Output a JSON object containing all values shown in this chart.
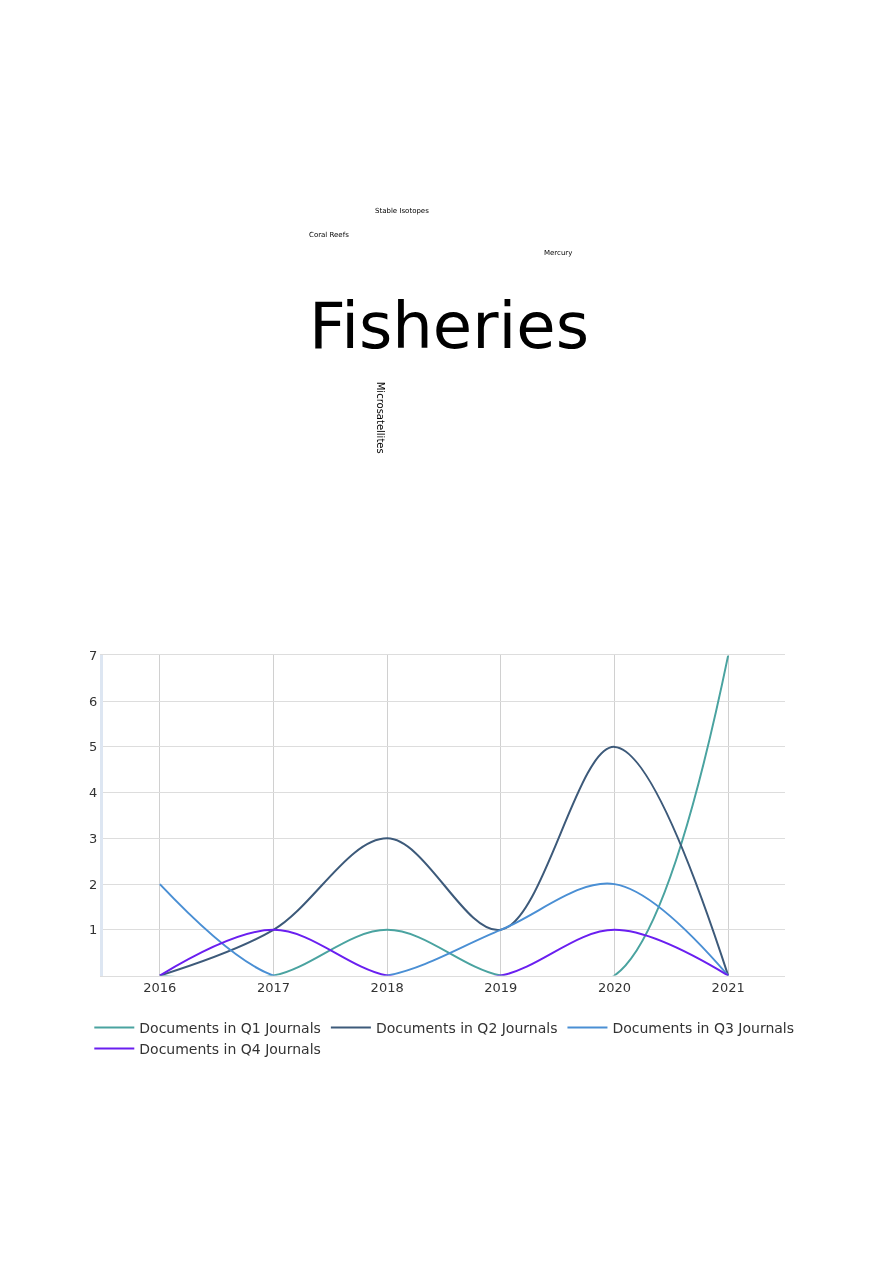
{
  "chart_data": [
    {
      "type": "other",
      "annotations": [
        "Fisheries",
        "Stable Isotopes",
        "Coral Reefs",
        "Mercury",
        "Microsatellites"
      ]
    },
    {
      "type": "line",
      "categories": [
        "2016",
        "2017",
        "2018",
        "2019",
        "2020",
        "2021"
      ],
      "series": [
        {
          "name": "Documents in Q1 Journals",
          "color": "#4aa3a0",
          "values": [
            0,
            0,
            1,
            0,
            0,
            7
          ]
        },
        {
          "name": "Documents in Q2 Journals",
          "color": "#3d5a7a",
          "values": [
            0,
            1,
            3,
            1,
            5,
            0
          ]
        },
        {
          "name": "Documents in Q3 Journals",
          "color": "#4a8fd4",
          "values": [
            2,
            0,
            0,
            1,
            2,
            0
          ]
        },
        {
          "name": "Documents in Q4 Journals",
          "color": "#6a1ff0",
          "values": [
            0,
            1,
            0,
            0,
            1,
            0
          ]
        }
      ],
      "ylim": [
        0,
        7
      ],
      "yticks": [
        {
          "value": 0,
          "label": null
        },
        1,
        2,
        3,
        4,
        5,
        6,
        7
      ],
      "grid": true,
      "legend": "bottom",
      "marker": "none",
      "line_style": "solid"
    }
  ]
}
